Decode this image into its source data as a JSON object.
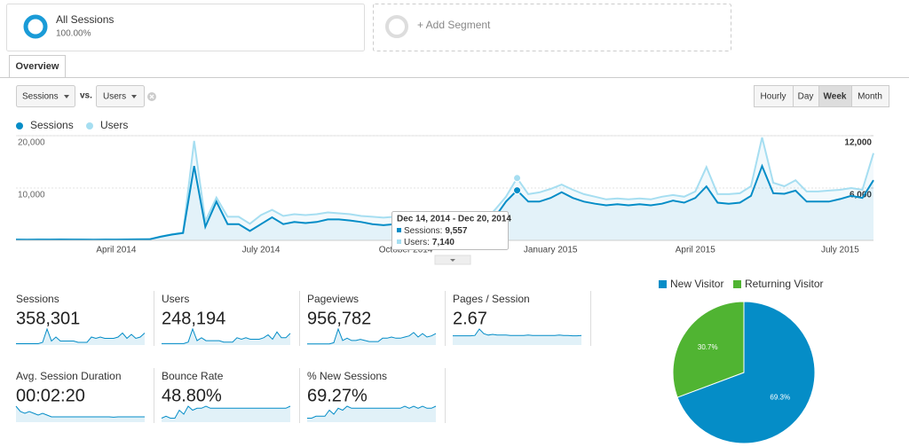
{
  "segments": [
    {
      "name": "All Sessions",
      "percent": "100.00%"
    },
    {
      "name": "+ Add Segment"
    }
  ],
  "tabs": [
    "Overview"
  ],
  "controls": {
    "metric": "Sessions",
    "vs": "vs.",
    "compare": "Users",
    "granularity": [
      "Hourly",
      "Day",
      "Week",
      "Month"
    ],
    "active_index": 2
  },
  "chart_data": [
    {
      "type": "line",
      "categories": [
        null,
        null,
        null,
        null,
        null,
        null,
        null,
        null,
        null,
        "April 2014",
        null,
        null,
        null,
        null,
        null,
        null,
        null,
        null,
        null,
        null,
        null,
        null,
        "July 2014",
        null,
        null,
        null,
        null,
        null,
        null,
        null,
        null,
        null,
        null,
        null,
        null,
        "October 2014",
        null,
        null,
        null,
        null,
        null,
        null,
        null,
        null,
        null,
        null,
        null,
        null,
        "January 2015",
        null,
        null,
        null,
        null,
        null,
        null,
        null,
        null,
        null,
        null,
        null,
        null,
        "April 2015",
        null,
        null,
        null,
        null,
        null,
        null,
        null,
        null,
        null,
        null,
        null,
        null,
        "July 2015",
        null,
        null,
        null
      ],
      "series": [
        {
          "name": "Sessions",
          "color": "#058dc7",
          "values": [
            150,
            140,
            160,
            150,
            170,
            160,
            150,
            140,
            160,
            150,
            170,
            180,
            200,
            700,
            1100,
            1400,
            14200,
            2600,
            7400,
            3100,
            3100,
            1800,
            3100,
            4400,
            3100,
            3500,
            3300,
            3500,
            4000,
            4000,
            3800,
            3500,
            3100,
            2900,
            3100,
            2900,
            2800,
            2600,
            2600,
            2400,
            2200,
            1800,
            2200,
            4400,
            7400,
            9557,
            7400,
            7400,
            8100,
            9200,
            8100,
            7400,
            7000,
            6700,
            6900,
            6700,
            6900,
            6700,
            7000,
            7600,
            7200,
            8100,
            10300,
            7200,
            7000,
            7200,
            8500,
            14200,
            9000,
            8900,
            9500,
            7400,
            7400,
            7400,
            7900,
            8500,
            8100,
            11500
          ]
        },
        {
          "name": "Users",
          "color": "#a6def1",
          "axis": "y2",
          "values": [
            100,
            95,
            110,
            100,
            115,
            110,
            100,
            95,
            110,
            100,
            115,
            120,
            140,
            450,
            700,
            900,
            11400,
            2200,
            4900,
            2700,
            2700,
            1900,
            2900,
            3500,
            2800,
            3000,
            2900,
            3000,
            3200,
            3100,
            3000,
            2800,
            2700,
            2600,
            2700,
            2600,
            2400,
            2300,
            2200,
            2200,
            2100,
            1900,
            2100,
            3500,
            5000,
            7140,
            5300,
            5500,
            5900,
            6400,
            5800,
            5300,
            5000,
            4700,
            4800,
            4700,
            4800,
            4700,
            5000,
            5200,
            5000,
            5600,
            8400,
            5300,
            5300,
            5400,
            6200,
            11800,
            6600,
            6200,
            6900,
            5600,
            5600,
            5700,
            5800,
            6000,
            5800,
            10000
          ]
        }
      ],
      "ylim": [
        0,
        20000
      ],
      "yticks": [
        {
          "value": 10000,
          "label": "10,000"
        },
        {
          "value": 20000,
          "label": "20,000"
        }
      ],
      "y2lim": [
        0,
        12000
      ],
      "y2ticks": [
        {
          "value": 6000,
          "label": "6,000"
        },
        {
          "value": 12000,
          "label": "12,000"
        }
      ],
      "grid": true,
      "area": true
    },
    {
      "type": "pie",
      "categories": [
        "New Visitor",
        "Returning Visitor"
      ],
      "values": [
        69.3,
        30.7
      ],
      "value_labels": [
        "69.3%",
        "30.7%"
      ],
      "colors": [
        "#058dc7",
        "#50b432"
      ]
    }
  ],
  "tooltip": {
    "index": 45,
    "title": "Dec 14, 2014 - Dec 20, 2014",
    "rows": [
      {
        "label": "Sessions:",
        "value": "9,557"
      },
      {
        "label": "Users:",
        "value": "7,140"
      }
    ]
  },
  "metrics": [
    {
      "label": "Sessions",
      "value": "358,301",
      "sparkline": [
        1,
        1,
        1,
        1,
        1,
        1,
        2,
        12,
        3,
        6,
        3,
        3,
        3,
        3,
        2,
        2,
        2,
        6,
        5,
        6,
        5,
        5,
        5,
        6,
        9,
        5,
        8,
        5,
        6,
        9
      ]
    },
    {
      "label": "Users",
      "value": "248,194",
      "sparkline": [
        1,
        1,
        1,
        1,
        1,
        1,
        2,
        11,
        3,
        5,
        3,
        3,
        3,
        3,
        2,
        2,
        2,
        5,
        4,
        5,
        4,
        4,
        4,
        5,
        7,
        4,
        9,
        5,
        5,
        8
      ]
    },
    {
      "label": "Pageviews",
      "value": "956,782",
      "sparkline": [
        1,
        1,
        1,
        1,
        1,
        1,
        2,
        14,
        4,
        6,
        4,
        4,
        5,
        4,
        3,
        3,
        3,
        6,
        6,
        7,
        6,
        6,
        7,
        8,
        11,
        7,
        10,
        7,
        8,
        10
      ]
    },
    {
      "label": "Pages / Session",
      "value": "2.67",
      "sparkline": [
        2.6,
        2.6,
        2.6,
        2.6,
        2.6,
        2.7,
        4.5,
        3.2,
        2.8,
        3,
        2.8,
        2.8,
        2.8,
        2.7,
        2.7,
        2.7,
        2.7,
        2.8,
        2.7,
        2.7,
        2.7,
        2.7,
        2.7,
        2.7,
        2.8,
        2.7,
        2.7,
        2.6,
        2.6,
        2.7
      ]
    },
    {
      "label": "Avg. Session Duration",
      "value": "00:02:20",
      "sparkline": [
        9,
        6,
        5,
        6,
        5,
        4,
        5,
        4,
        3,
        3,
        3,
        3,
        3,
        3,
        3,
        3,
        3,
        3,
        3,
        3,
        3,
        3,
        2.8,
        3,
        3,
        3,
        3,
        3,
        3,
        3
      ]
    },
    {
      "label": "Bounce Rate",
      "value": "48.80%",
      "sparkline": [
        2,
        3,
        2,
        2,
        6,
        4,
        8,
        6,
        7,
        7,
        8,
        7,
        7,
        7,
        7,
        7,
        7,
        7,
        7,
        7,
        7,
        7,
        7,
        7,
        7,
        7,
        7,
        7,
        7,
        8
      ]
    },
    {
      "label": "% New Sessions",
      "value": "69.27%",
      "sparkline": [
        2,
        2,
        3,
        3,
        3,
        6,
        4,
        7,
        6,
        8,
        7,
        7,
        7,
        7,
        7,
        7,
        7,
        7,
        7,
        7,
        7,
        7,
        8,
        7,
        8,
        7,
        8,
        7,
        7,
        8
      ]
    }
  ]
}
